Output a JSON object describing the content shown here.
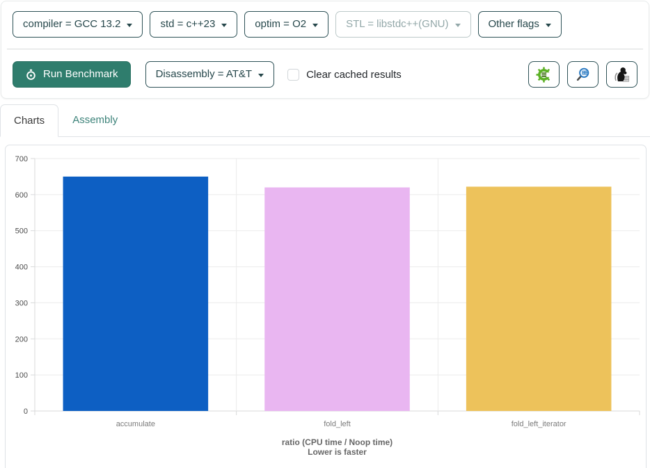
{
  "colors": {
    "accent_teal": "#2f7d6d",
    "outline_teal": "#2d5156",
    "link_teal": "#3d837a",
    "bar_blue": "#0d5fc3",
    "bar_pink": "#e9b6f1",
    "bar_gold": "#edc25b"
  },
  "toolbar": {
    "dropdowns": [
      {
        "label": "compiler = GCC 13.2",
        "disabled": false
      },
      {
        "label": "std = c++23",
        "disabled": false
      },
      {
        "label": "optim = O2",
        "disabled": false
      },
      {
        "label": "STL = libstdc++(GNU)",
        "disabled": true
      },
      {
        "label": "Other flags",
        "disabled": false
      }
    ],
    "run_button_label": "Run Benchmark",
    "disassembly_label": "Disassembly = AT&T",
    "clear_cached_label": "Clear cached results",
    "clear_cached_checked": false,
    "icon_buttons": [
      {
        "name": "compiler-explorer-icon"
      },
      {
        "name": "magnifier-grid-icon"
      },
      {
        "name": "mascot-icon"
      }
    ]
  },
  "tabs": [
    {
      "label": "Charts",
      "active": true
    },
    {
      "label": "Assembly",
      "active": false
    }
  ],
  "chart_data": {
    "type": "bar",
    "categories": [
      "accumulate",
      "fold_left",
      "fold_left_iterator"
    ],
    "values": [
      650,
      620,
      622
    ],
    "colors": [
      "#0d5fc3",
      "#e9b6f1",
      "#edc25b"
    ],
    "title": "",
    "xlabel": "ratio (CPU time / Noop time)",
    "xlabel_sub": "Lower is faster",
    "ylabel": "",
    "ylim": [
      0,
      700
    ],
    "ytick_step": 100,
    "grid": true,
    "legend": false
  }
}
